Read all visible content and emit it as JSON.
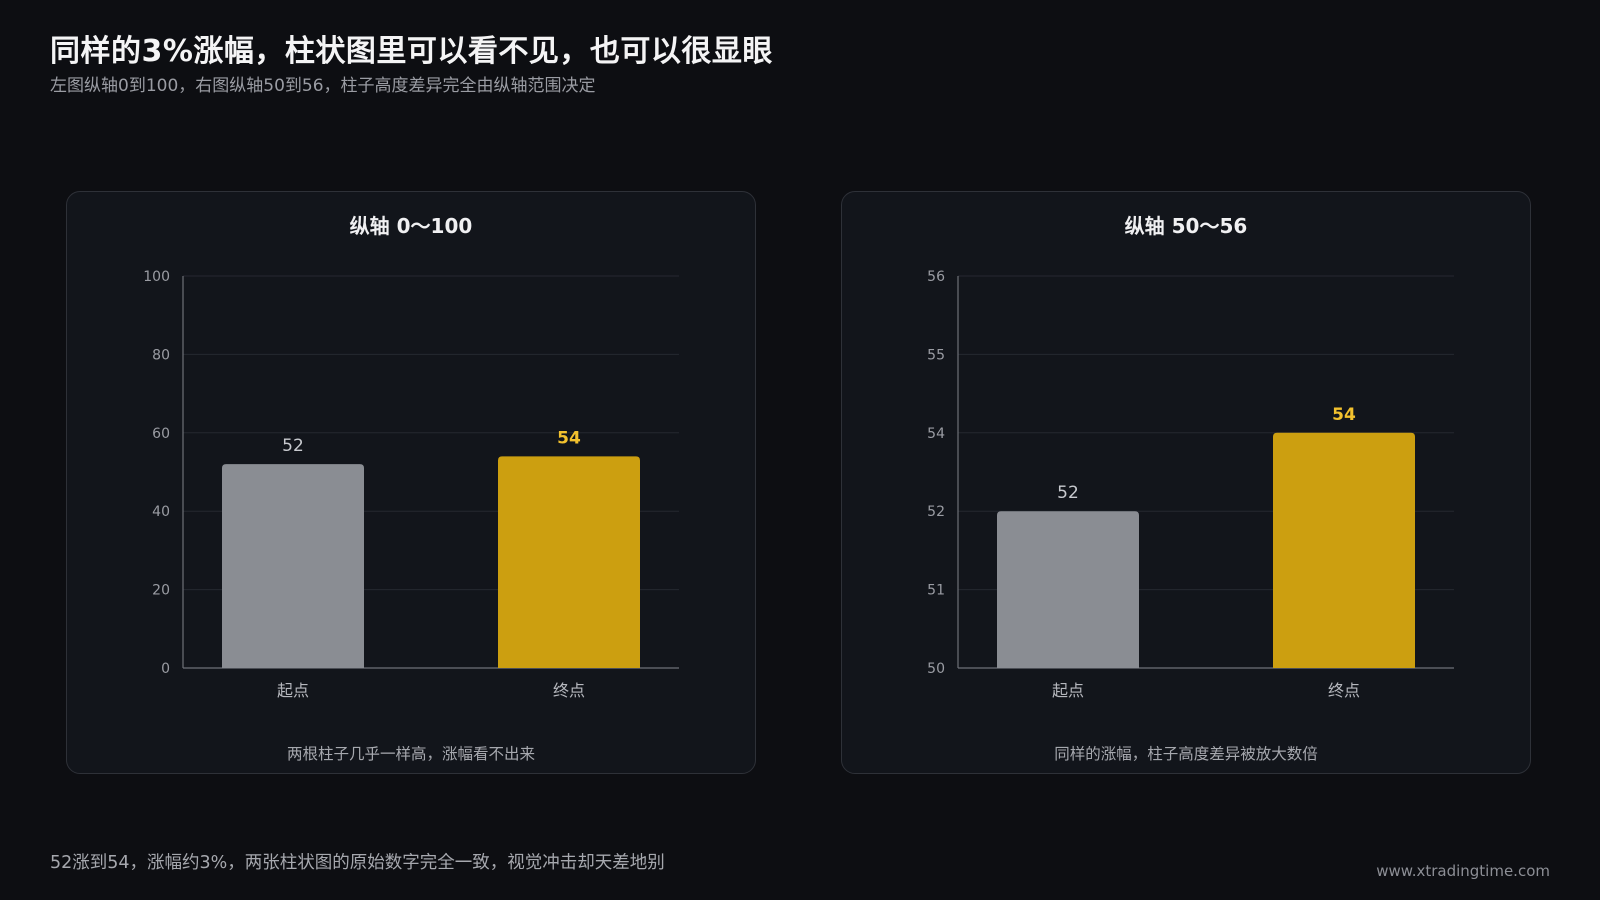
{
  "header": {
    "title": "同样的3%涨幅，柱状图里可以看不见，也可以很显眼",
    "subtitle": "左图纵轴0到100，右图纵轴50到56，柱子高度差异完全由纵轴范围决定"
  },
  "footer": {
    "note": "52涨到54，涨幅约3%，两张柱状图的原始数字完全一致，视觉冲击却天差地别",
    "site": "www.xtradingtime.com"
  },
  "colors": {
    "background": "#0d0e12",
    "panel": "#12151b",
    "start_bar": "#8a8d93",
    "end_bar": "#cc9f10",
    "end_label": "#f2c12e",
    "start_label": "#c8cacf",
    "gridline": "#252830",
    "axis": "#9a9ca3"
  },
  "chart_data": [
    {
      "type": "bar",
      "title": "纵轴 0～100",
      "caption": "两根柱子几乎一样高，涨幅看不出来",
      "categories": [
        "起点",
        "终点"
      ],
      "values": [
        52,
        54
      ],
      "ylim": [
        0,
        100
      ],
      "ytick_labels": [
        "0",
        "20",
        "40",
        "60",
        "80",
        "100"
      ],
      "grid": true
    },
    {
      "type": "bar",
      "title": "纵轴 50～56",
      "caption": "同样的涨幅，柱子高度差异被放大数倍",
      "categories": [
        "起点",
        "终点"
      ],
      "values": [
        52,
        54
      ],
      "ylim": [
        50,
        56
      ],
      "ytick_labels": [
        "50",
        "51",
        "52",
        "54",
        "55",
        "56"
      ],
      "grid": true
    }
  ]
}
